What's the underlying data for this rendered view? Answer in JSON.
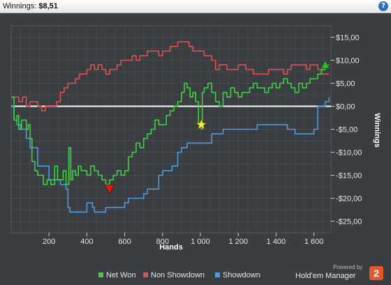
{
  "header": {
    "label": "Winnings:",
    "value": "$8,51"
  },
  "footer": {
    "powered_by": "Powered by",
    "brand": "Hold'em Manager",
    "brand_badge": "2"
  },
  "colors": {
    "net_won": "#3fd13f",
    "non_showdown": "#e05050",
    "showdown": "#4d9be0",
    "zero_line": "#ffffff",
    "background": "#3a3d42",
    "grid": "#4a4d52"
  },
  "chart_data": {
    "type": "line",
    "xlabel": "Hands",
    "ylabel": "Winnings",
    "xlim": [
      0,
      1690
    ],
    "ylim": [
      -27.5,
      17.5
    ],
    "x_ticks": [
      200,
      400,
      600,
      800,
      1000,
      1200,
      1400,
      1600
    ],
    "x_tick_labels": [
      "200",
      "400",
      "600",
      "800",
      "1 000",
      "1 200",
      "1 400",
      "1 600"
    ],
    "y_ticks": [
      15,
      10,
      5,
      0,
      -5,
      -10,
      -15,
      -20,
      -25
    ],
    "y_tick_labels": [
      "$15,00",
      "$10,00",
      "$5,00",
      "$0,00",
      "-$5,00",
      "-$10,00",
      "-$15,00",
      "-$20,00",
      "-$25,00"
    ],
    "grid": true,
    "legend_position": "bottom",
    "series": [
      {
        "name": "Net Won",
        "x": [
          0,
          15,
          30,
          40,
          55,
          70,
          80,
          90,
          100,
          110,
          125,
          140,
          155,
          170,
          190,
          210,
          230,
          245,
          260,
          275,
          290,
          305,
          315,
          325,
          340,
          355,
          370,
          385,
          400,
          420,
          440,
          460,
          480,
          500,
          520,
          540,
          560,
          580,
          600,
          620,
          640,
          660,
          680,
          700,
          720,
          740,
          760,
          780,
          800,
          820,
          840,
          860,
          880,
          900,
          915,
          930,
          945,
          960,
          975,
          990,
          1005,
          1010,
          1020,
          1040,
          1060,
          1080,
          1100,
          1120,
          1140,
          1160,
          1180,
          1200,
          1220,
          1240,
          1260,
          1280,
          1300,
          1320,
          1340,
          1360,
          1380,
          1400,
          1420,
          1440,
          1460,
          1480,
          1500,
          1520,
          1540,
          1560,
          1580,
          1600,
          1620,
          1640,
          1660,
          1680
        ],
        "y": [
          2,
          -3,
          -2,
          -5,
          -3,
          -3,
          -5,
          -4,
          -7,
          -12,
          -14,
          -15,
          -15,
          -17,
          -16,
          -17,
          -13,
          -16,
          -16,
          -14,
          -17,
          -9,
          -16,
          -14,
          -15,
          -13,
          -14,
          -14,
          -15,
          -13,
          -14,
          -15,
          -16,
          -17,
          -16,
          -15,
          -14,
          -15,
          -14,
          -11,
          -10,
          -8,
          -9,
          -7,
          -6,
          -5,
          -3,
          -4,
          -4,
          -2,
          -1,
          0,
          1,
          3,
          5,
          4,
          2,
          3,
          1,
          -4,
          -5,
          3,
          4,
          5,
          3,
          1,
          0,
          3,
          2,
          4,
          3,
          2,
          3,
          3,
          4,
          5,
          4,
          4,
          3,
          4,
          5,
          4,
          5,
          6,
          5,
          4,
          3,
          5,
          4,
          5,
          6,
          6,
          7,
          8,
          9,
          9
        ],
        "color": "#3fd13f"
      },
      {
        "name": "Non Showdown",
        "x": [
          0,
          20,
          40,
          60,
          80,
          100,
          120,
          140,
          160,
          180,
          200,
          220,
          240,
          260,
          280,
          300,
          320,
          340,
          360,
          380,
          400,
          420,
          440,
          460,
          480,
          500,
          520,
          540,
          560,
          580,
          600,
          620,
          640,
          660,
          680,
          700,
          720,
          740,
          760,
          780,
          800,
          820,
          840,
          860,
          880,
          900,
          920,
          940,
          960,
          980,
          1000,
          1020,
          1040,
          1060,
          1080,
          1100,
          1120,
          1140,
          1160,
          1180,
          1200,
          1220,
          1240,
          1260,
          1280,
          1300,
          1320,
          1340,
          1360,
          1380,
          1400,
          1420,
          1440,
          1460,
          1480,
          1500,
          1520,
          1540,
          1560,
          1580,
          1600,
          1620,
          1640,
          1660,
          1680
        ],
        "y": [
          2,
          2,
          1,
          2,
          0,
          1,
          1,
          0,
          -1,
          0,
          0,
          0,
          1,
          3,
          4,
          5,
          5,
          6,
          7,
          7,
          8,
          9,
          8,
          9,
          8,
          7,
          8,
          8,
          9,
          10,
          10,
          10,
          11,
          10,
          11,
          11,
          12,
          12,
          12,
          11,
          12,
          12,
          13,
          13,
          14,
          14,
          14,
          13,
          12,
          12,
          12,
          11,
          11,
          10,
          8,
          9,
          9,
          8,
          8,
          8,
          9,
          9,
          8,
          8,
          7,
          7,
          7,
          7,
          8,
          8,
          8,
          8,
          7,
          8,
          9,
          9,
          9,
          9,
          8,
          9,
          9,
          8,
          7,
          7,
          7
        ],
        "color": "#e05050"
      },
      {
        "name": "Showdown",
        "x": [
          0,
          15,
          30,
          50,
          80,
          100,
          140,
          200,
          260,
          290,
          300,
          310,
          330,
          400,
          430,
          440,
          460,
          500,
          540,
          600,
          620,
          700,
          720,
          780,
          800,
          850,
          880,
          900,
          930,
          960,
          990,
          1010,
          1060,
          1120,
          1160,
          1220,
          1300,
          1360,
          1400,
          1460,
          1500,
          1560,
          1600,
          1620,
          1640,
          1660,
          1680
        ],
        "y": [
          0,
          -3,
          -4,
          -5,
          -7,
          -9,
          -13,
          -16,
          -17,
          -18,
          -22,
          -23,
          -23,
          -21,
          -22,
          -23,
          -23,
          -22,
          -22,
          -21,
          -20,
          -19,
          -18,
          -15,
          -14,
          -13,
          -10,
          -9,
          -8,
          -8,
          -8,
          -8,
          -6,
          -5,
          -5,
          -5,
          -4,
          -4,
          -4,
          -5,
          -6,
          -6,
          -5,
          0,
          0,
          1,
          2
        ],
        "color": "#4d9be0"
      }
    ],
    "markers": [
      {
        "type": "triangle-down",
        "x": 520,
        "y": -18,
        "color": "#dd1a1a"
      },
      {
        "type": "star",
        "x": 1005,
        "y": -4,
        "color": "#ffee33"
      },
      {
        "type": "triangle-up",
        "x": 1660,
        "y": 9,
        "color": "#2db82d"
      }
    ]
  }
}
